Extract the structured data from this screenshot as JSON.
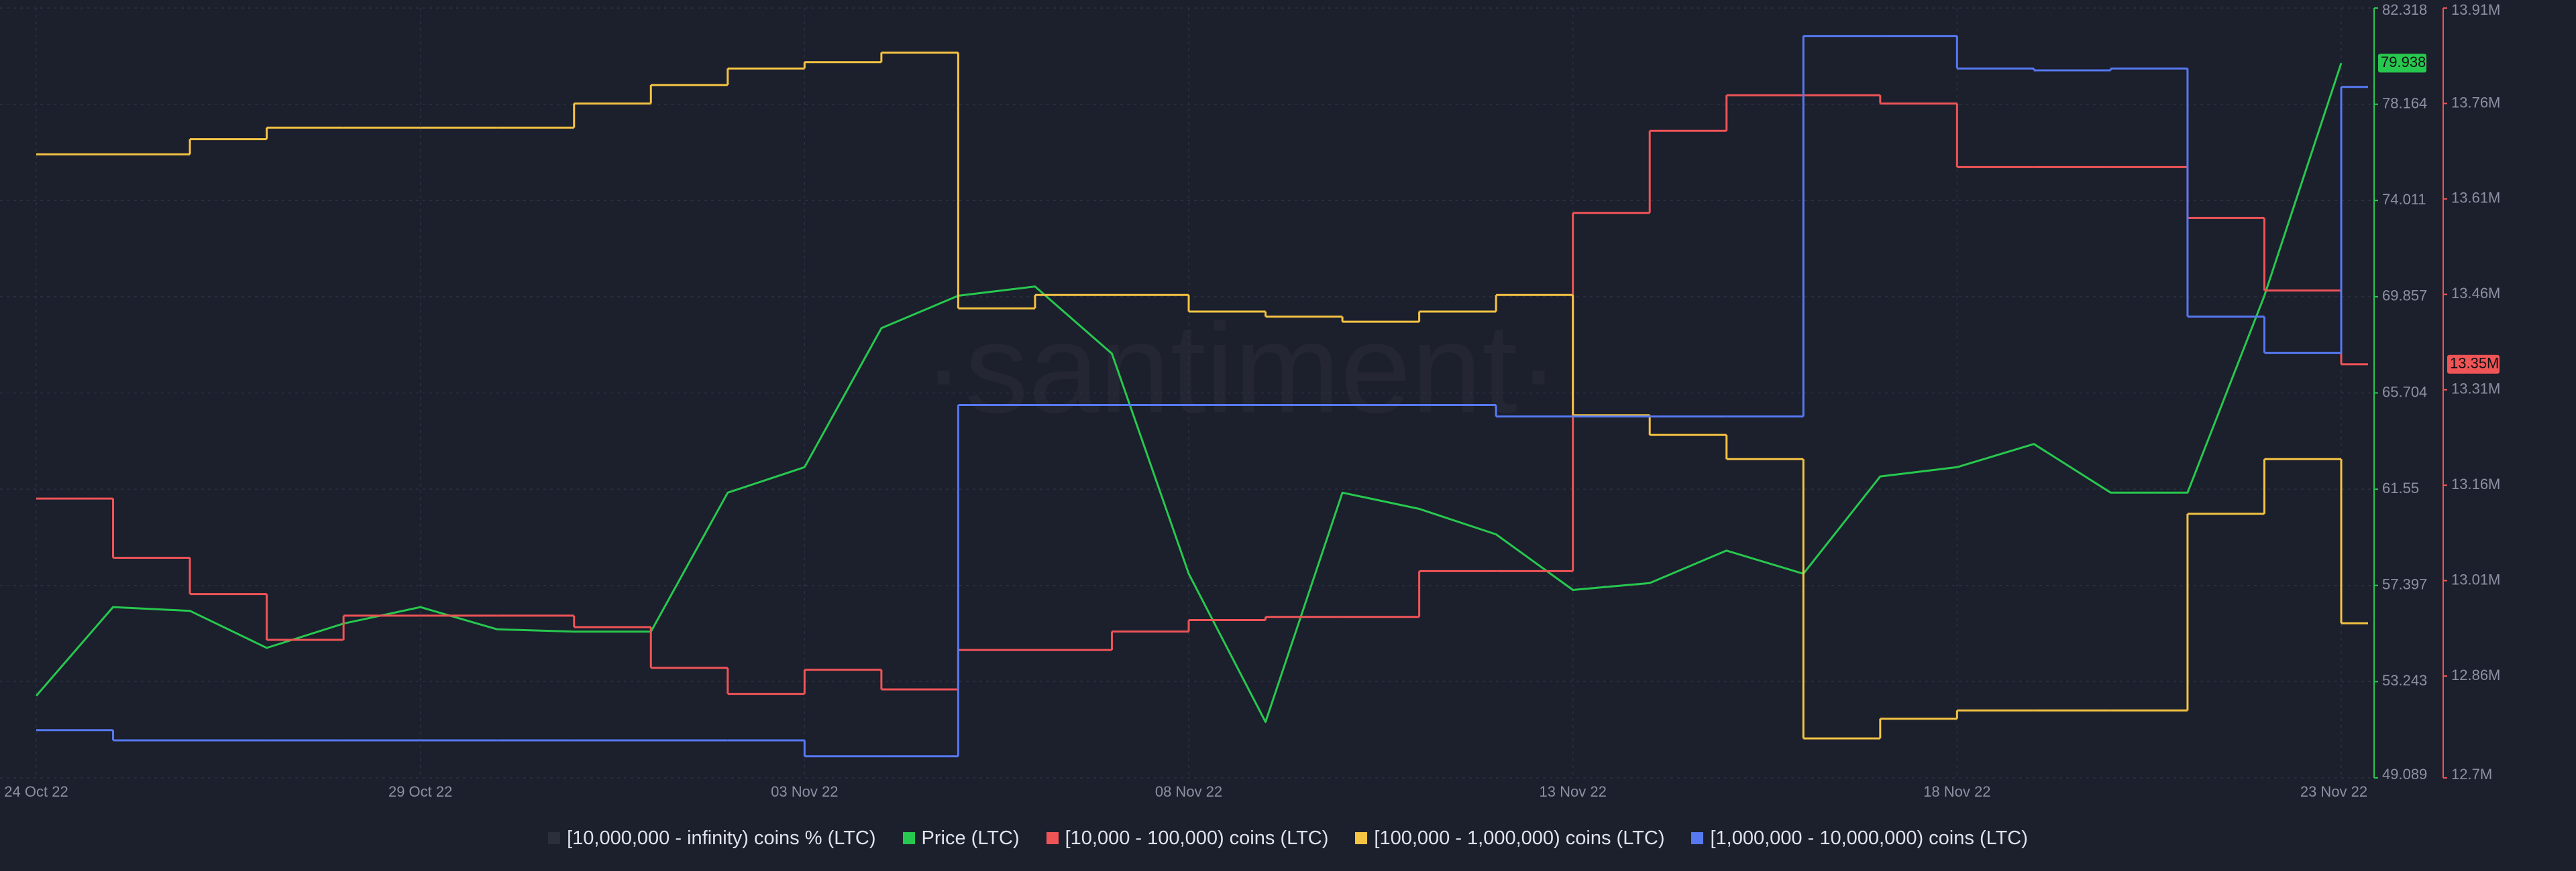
{
  "chart_data": {
    "type": "line",
    "watermark": "·santiment·",
    "x": [
      "2022-10-24",
      "2022-10-25",
      "2022-10-26",
      "2022-10-27",
      "2022-10-28",
      "2022-10-29",
      "2022-10-30",
      "2022-10-31",
      "2022-11-01",
      "2022-11-02",
      "2022-11-03",
      "2022-11-04",
      "2022-11-05",
      "2022-11-06",
      "2022-11-07",
      "2022-11-08",
      "2022-11-09",
      "2022-11-10",
      "2022-11-11",
      "2022-11-12",
      "2022-11-13",
      "2022-11-14",
      "2022-11-15",
      "2022-11-16",
      "2022-11-17",
      "2022-11-18",
      "2022-11-19",
      "2022-11-20",
      "2022-11-21",
      "2022-11-22",
      "2022-11-23"
    ],
    "xlim": [
      "2022-10-24",
      "2022-11-23"
    ],
    "xticks": [
      {
        "value": "2022-10-24",
        "label": "24 Oct 22"
      },
      {
        "value": "2022-10-29",
        "label": "29 Oct 22"
      },
      {
        "value": "2022-11-03",
        "label": "03 Nov 22"
      },
      {
        "value": "2022-11-08",
        "label": "08 Nov 22"
      },
      {
        "value": "2022-11-13",
        "label": "13 Nov 22"
      },
      {
        "value": "2022-11-18",
        "label": "18 Nov 22"
      },
      {
        "value": "2022-11-23",
        "label": "23 Nov 22"
      }
    ],
    "ylim": [
      49.089,
      82.318
    ],
    "yticks": [
      49.089,
      53.243,
      57.397,
      61.55,
      65.704,
      69.857,
      74.011,
      78.164,
      82.318
    ],
    "y_color": "#27c84f",
    "y2lim": [
      12700000,
      13910000
    ],
    "y2ticks": [
      {
        "value": 12700000,
        "label": "12.7M"
      },
      {
        "value": 12860000,
        "label": "12.86M"
      },
      {
        "value": 13010000,
        "label": "13.01M"
      },
      {
        "value": 13160000,
        "label": "13.16M"
      },
      {
        "value": 13310000,
        "label": "13.31M"
      },
      {
        "value": 13460000,
        "label": "13.46M"
      },
      {
        "value": 13610000,
        "label": "13.61M"
      },
      {
        "value": 13760000,
        "label": "13.76M"
      },
      {
        "value": 13910000,
        "label": "13.91M"
      }
    ],
    "y2_color": "#ef5457",
    "grid": true,
    "series": [
      {
        "name": "[10,000,000 - infinity) coins % (LTC)",
        "color": "#2b2e3b",
        "axis": "y2",
        "style": "step",
        "values": [
          null,
          null,
          null,
          null,
          null,
          null,
          null,
          null,
          null,
          null,
          null,
          null,
          null,
          null,
          null,
          null,
          null,
          null,
          null,
          null,
          null,
          null,
          null,
          null,
          null,
          null,
          null,
          null,
          null,
          null,
          null
        ]
      },
      {
        "name": "Price (LTC)",
        "color": "#27c84f",
        "axis": "y",
        "style": "line",
        "values": [
          52.63,
          56.46,
          56.3,
          54.7,
          55.75,
          56.46,
          55.5,
          55.4,
          55.4,
          61.4,
          62.5,
          68.5,
          69.9,
          70.3,
          67.4,
          57.9,
          51.5,
          61.4,
          60.7,
          59.6,
          57.2,
          57.5,
          58.9,
          57.9,
          62.1,
          62.5,
          63.5,
          61.4,
          61.4,
          69.9,
          79.938
        ]
      },
      {
        "name": "[10,000 - 100,000) coins (LTC)",
        "color": "#ef5457",
        "axis": "y2",
        "style": "step",
        "values": [
          13139000,
          13046000,
          12989000,
          12917000,
          12955000,
          12955000,
          12955000,
          12937000,
          12873000,
          12832000,
          12870000,
          12839000,
          12901000,
          12901000,
          12930000,
          12948000,
          12953000,
          12953000,
          13025000,
          13025000,
          13588000,
          13717000,
          13773000,
          13773000,
          13760000,
          13660000,
          13660000,
          13660000,
          13580000,
          13466000,
          13350000
        ]
      },
      {
        "name": "[100,000  - 1,000,000) coins (LTC)",
        "color": "#f5c443",
        "axis": "y2",
        "style": "step",
        "values": [
          13680000,
          13680000,
          13704000,
          13722000,
          13722000,
          13722000,
          13722000,
          13760000,
          13789000,
          13815000,
          13825000,
          13840000,
          13438000,
          13459000,
          13459000,
          13433000,
          13425000,
          13417000,
          13433000,
          13459000,
          13270000,
          13239000,
          13201000,
          12762000,
          12793000,
          12806000,
          12806000,
          12806000,
          13115000,
          13201000,
          12943000
        ]
      },
      {
        "name": "[1,000,000 - 10,000,000) coins (LTC)",
        "color": "#5679f2",
        "axis": "y2",
        "style": "step",
        "values": [
          12775000,
          12759000,
          12759000,
          12759000,
          12759000,
          12759000,
          12759000,
          12759000,
          12759000,
          12759000,
          12734000,
          12734000,
          13286000,
          13286000,
          13286000,
          13286000,
          13286000,
          13286000,
          13286000,
          13268000,
          13268000,
          13268000,
          13268000,
          13866000,
          13866000,
          13815000,
          13812000,
          13815000,
          13425000,
          13368000,
          13786000
        ]
      }
    ],
    "markers": [
      {
        "axis": "y",
        "value": 79.938,
        "color": "#27c84f"
      },
      {
        "axis": "y2",
        "value": 13350000,
        "label": "13.35M",
        "color": "#ef5457"
      }
    ]
  }
}
